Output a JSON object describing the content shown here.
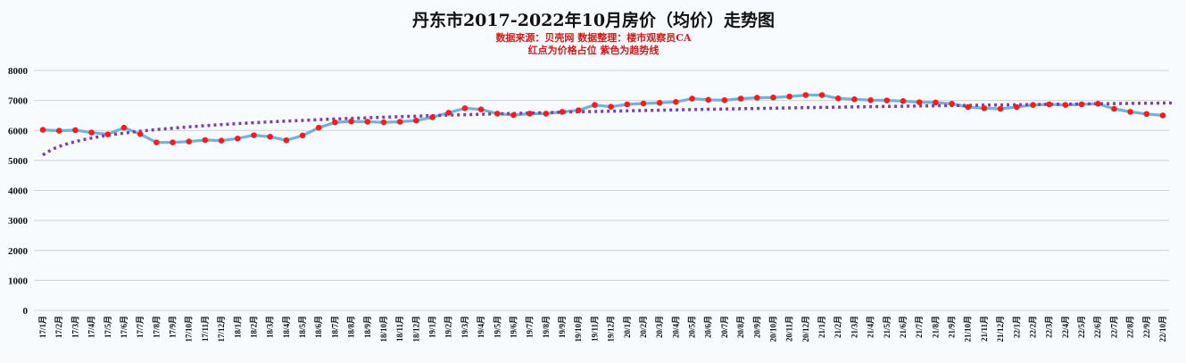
{
  "chart_data": {
    "type": "line",
    "title": "丹东市2017-2022年10月房价（均价）走势图",
    "subtitle1": "数据来源：贝壳网  数据整理：楼市观察员CA",
    "subtitle2": "红点为价格占位   紫色为趋势线",
    "ylim": [
      0,
      8000
    ],
    "yticks": [
      0,
      1000,
      2000,
      3000,
      4000,
      5000,
      6000,
      7000,
      8000
    ],
    "grid": true,
    "colors": {
      "line": "#6fb2dd",
      "point": "#ff1a1a",
      "trend": "#7b3fb0",
      "grid": "#d0d0d0"
    },
    "categories": [
      "17/1月",
      "17/2月",
      "17/3月",
      "17/4月",
      "17/5月",
      "17/6月",
      "17/7月",
      "17/8月",
      "17/9月",
      "17/10月",
      "17/11月",
      "17/12月",
      "18/1月",
      "18/2月",
      "18/3月",
      "18/4月",
      "18/5月",
      "18/6月",
      "18/7月",
      "18/8月",
      "18/9月",
      "18/10月",
      "18/11月",
      "18/12月",
      "19/1月",
      "19/2月",
      "19/3月",
      "19/4月",
      "19/5月",
      "19/6月",
      "19/7月",
      "19/8月",
      "19/9月",
      "19/10月",
      "19/11月",
      "19/12月",
      "20/1月",
      "20/2月",
      "20/3月",
      "20/4月",
      "20/5月",
      "20/6月",
      "20/7月",
      "20/8月",
      "20/9月",
      "20/10月",
      "20/11月",
      "20/12月",
      "21/1月",
      "21/2月",
      "21/3月",
      "21/4月",
      "21/5月",
      "21/6月",
      "21/7月",
      "21/8月",
      "21/9月",
      "21/10月",
      "21/11月",
      "21/12月",
      "22/1月",
      "22/2月",
      "22/3月",
      "22/4月",
      "22/5月",
      "22/6月",
      "22/7月",
      "22/8月",
      "22/9月",
      "22/10月"
    ],
    "values": [
      6020,
      5990,
      6010,
      5930,
      5870,
      6090,
      5880,
      5600,
      5600,
      5630,
      5680,
      5660,
      5730,
      5840,
      5790,
      5670,
      5830,
      6090,
      6270,
      6300,
      6290,
      6270,
      6290,
      6330,
      6440,
      6590,
      6740,
      6700,
      6560,
      6510,
      6560,
      6560,
      6620,
      6670,
      6850,
      6790,
      6870,
      6900,
      6920,
      6950,
      7060,
      7020,
      7010,
      7060,
      7090,
      7100,
      7130,
      7180,
      7180,
      7070,
      7040,
      7010,
      7000,
      6980,
      6940,
      6930,
      6890,
      6780,
      6740,
      6720,
      6780,
      6850,
      6870,
      6850,
      6870,
      6890,
      6720,
      6620,
      6550,
      6500
    ],
    "trend": {
      "type": "logarithmic",
      "a": 5180,
      "b": 408,
      "label": "趋势线"
    }
  }
}
